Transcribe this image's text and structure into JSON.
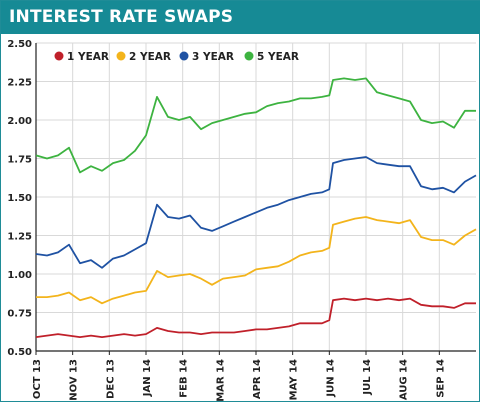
{
  "chart_data": {
    "type": "line",
    "title": "INTEREST RATE SWAPS",
    "xlabel": "",
    "ylabel": "",
    "ylim": [
      0.5,
      2.5
    ],
    "yticks": [
      "0.50",
      "0.75",
      "1.00",
      "1.25",
      "1.50",
      "1.75",
      "2.00",
      "2.25",
      "2.50"
    ],
    "yticks_values": [
      0.5,
      0.75,
      1.0,
      1.25,
      1.5,
      1.75,
      2.0,
      2.25,
      2.5
    ],
    "xlim": [
      0,
      12
    ],
    "x_tick_labels": [
      "OCT 13",
      "NOV 13",
      "DEC 13",
      "JAN 14",
      "FEB 14",
      "MAR 14",
      "APR 14",
      "MAY 14",
      "JUN 14",
      "JUL 14",
      "AUG 14",
      "SEP 14"
    ],
    "x_tick_values": [
      0,
      1,
      2,
      3,
      4,
      5,
      6,
      7,
      8,
      9,
      10,
      11
    ],
    "grid": true,
    "legend_position": "top",
    "colors": {
      "title_bar": "#168a95",
      "grid": "#d9d9d9",
      "axis": "#222222"
    },
    "series": [
      {
        "name": "1 YEAR",
        "color": "#c0202a",
        "x": [
          0,
          0.3,
          0.6,
          0.9,
          1.2,
          1.5,
          1.8,
          2.1,
          2.4,
          2.7,
          3.0,
          3.3,
          3.6,
          3.9,
          4.2,
          4.5,
          4.8,
          5.1,
          5.4,
          5.7,
          6.0,
          6.3,
          6.6,
          6.9,
          7.2,
          7.5,
          7.8,
          8.0,
          8.1,
          8.4,
          8.7,
          9.0,
          9.3,
          9.6,
          9.9,
          10.2,
          10.5,
          10.8,
          11.1,
          11.4,
          11.7,
          12.0
        ],
        "values": [
          0.59,
          0.6,
          0.61,
          0.6,
          0.59,
          0.6,
          0.59,
          0.6,
          0.61,
          0.6,
          0.61,
          0.65,
          0.63,
          0.62,
          0.62,
          0.61,
          0.62,
          0.62,
          0.62,
          0.63,
          0.64,
          0.64,
          0.65,
          0.66,
          0.68,
          0.68,
          0.68,
          0.7,
          0.83,
          0.84,
          0.83,
          0.84,
          0.83,
          0.84,
          0.83,
          0.84,
          0.8,
          0.79,
          0.79,
          0.78,
          0.81,
          0.81
        ]
      },
      {
        "name": "2 YEAR",
        "color": "#f3b41b",
        "x": [
          0,
          0.3,
          0.6,
          0.9,
          1.2,
          1.5,
          1.8,
          2.1,
          2.4,
          2.7,
          3.0,
          3.3,
          3.6,
          3.9,
          4.2,
          4.5,
          4.8,
          5.1,
          5.4,
          5.7,
          6.0,
          6.3,
          6.6,
          6.9,
          7.2,
          7.5,
          7.8,
          8.0,
          8.1,
          8.4,
          8.7,
          9.0,
          9.3,
          9.6,
          9.9,
          10.2,
          10.5,
          10.8,
          11.1,
          11.4,
          11.7,
          12.0
        ],
        "values": [
          0.85,
          0.85,
          0.86,
          0.88,
          0.83,
          0.85,
          0.81,
          0.84,
          0.86,
          0.88,
          0.89,
          1.02,
          0.98,
          0.99,
          1.0,
          0.97,
          0.93,
          0.97,
          0.98,
          0.99,
          1.03,
          1.04,
          1.05,
          1.08,
          1.12,
          1.14,
          1.15,
          1.17,
          1.32,
          1.34,
          1.36,
          1.37,
          1.35,
          1.34,
          1.33,
          1.35,
          1.24,
          1.22,
          1.22,
          1.19,
          1.25,
          1.29
        ]
      },
      {
        "name": "3 YEAR",
        "color": "#1f52a3",
        "x": [
          0,
          0.3,
          0.6,
          0.9,
          1.2,
          1.5,
          1.8,
          2.1,
          2.4,
          2.7,
          3.0,
          3.3,
          3.6,
          3.9,
          4.2,
          4.5,
          4.8,
          5.1,
          5.4,
          5.7,
          6.0,
          6.3,
          6.6,
          6.9,
          7.2,
          7.5,
          7.8,
          8.0,
          8.1,
          8.4,
          8.7,
          9.0,
          9.3,
          9.6,
          9.9,
          10.2,
          10.5,
          10.8,
          11.1,
          11.4,
          11.7,
          12.0
        ],
        "values": [
          1.13,
          1.12,
          1.14,
          1.19,
          1.07,
          1.09,
          1.04,
          1.1,
          1.12,
          1.16,
          1.2,
          1.45,
          1.37,
          1.36,
          1.38,
          1.3,
          1.28,
          1.31,
          1.34,
          1.37,
          1.4,
          1.43,
          1.45,
          1.48,
          1.5,
          1.52,
          1.53,
          1.55,
          1.72,
          1.74,
          1.75,
          1.76,
          1.72,
          1.71,
          1.7,
          1.7,
          1.57,
          1.55,
          1.56,
          1.53,
          1.6,
          1.64
        ]
      },
      {
        "name": "5 YEAR",
        "color": "#3db340",
        "x": [
          0,
          0.3,
          0.6,
          0.9,
          1.2,
          1.5,
          1.8,
          2.1,
          2.4,
          2.7,
          3.0,
          3.3,
          3.6,
          3.9,
          4.2,
          4.5,
          4.8,
          5.1,
          5.4,
          5.7,
          6.0,
          6.3,
          6.6,
          6.9,
          7.2,
          7.5,
          7.8,
          8.0,
          8.1,
          8.4,
          8.7,
          9.0,
          9.3,
          9.6,
          9.9,
          10.2,
          10.5,
          10.8,
          11.1,
          11.4,
          11.7,
          12.0
        ],
        "values": [
          1.77,
          1.75,
          1.77,
          1.82,
          1.66,
          1.7,
          1.67,
          1.72,
          1.74,
          1.8,
          1.9,
          2.15,
          2.02,
          2.0,
          2.02,
          1.94,
          1.98,
          2.0,
          2.02,
          2.04,
          2.05,
          2.09,
          2.11,
          2.12,
          2.14,
          2.14,
          2.15,
          2.16,
          2.26,
          2.27,
          2.26,
          2.27,
          2.18,
          2.16,
          2.14,
          2.12,
          2.0,
          1.98,
          1.99,
          1.95,
          2.06,
          2.06
        ]
      }
    ]
  }
}
